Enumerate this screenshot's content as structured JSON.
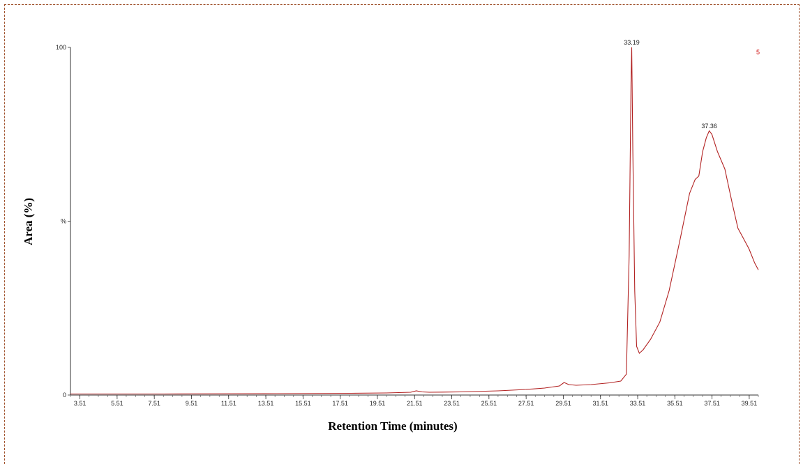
{
  "chart_data": {
    "type": "line",
    "xlabel": "Retention Time (minutes)",
    "ylabel": "Area (%)",
    "xlim": [
      3.0,
      40.0
    ],
    "ylim": [
      0,
      100
    ],
    "x_ticks": [
      "3.51",
      "5.51",
      "7.51",
      "9.51",
      "11.51",
      "13.51",
      "15.51",
      "17.51",
      "19.51",
      "21.51",
      "23.51",
      "25.51",
      "27.51",
      "29.51",
      "31.51",
      "33.51",
      "35.51",
      "37.51",
      "39.51"
    ],
    "y_ticks": [
      {
        "value": 0,
        "label": "0"
      },
      {
        "value": 50,
        "label": "%"
      },
      {
        "value": 100,
        "label": "100"
      }
    ],
    "annotations": [
      {
        "x": 33.19,
        "y": 100,
        "label": "33.19"
      },
      {
        "x": 37.36,
        "y": 76,
        "label": "37.36"
      }
    ],
    "corner_mark": "5",
    "color": "#b22222",
    "series": [
      {
        "x": [
          3.0,
          8.0,
          14.0,
          18.0,
          20.0,
          21.3,
          21.6,
          21.9,
          22.3,
          24.0,
          26.0,
          27.5,
          28.5,
          29.3,
          29.55,
          29.8,
          30.2,
          31.0,
          32.0,
          32.6,
          32.9,
          33.05,
          33.15,
          33.19,
          33.25,
          33.35,
          33.45,
          33.6,
          33.8,
          34.2,
          34.7,
          35.2,
          35.8,
          36.3,
          36.6,
          36.8,
          37.0,
          37.2,
          37.36,
          37.5,
          37.8,
          38.2,
          38.6,
          38.9,
          39.2,
          39.5,
          39.8,
          40.0
        ],
        "y": [
          0.3,
          0.3,
          0.4,
          0.5,
          0.6,
          0.8,
          1.2,
          0.9,
          0.8,
          0.9,
          1.2,
          1.6,
          2.0,
          2.6,
          3.6,
          3.0,
          2.8,
          3.0,
          3.5,
          4.0,
          6.0,
          40.0,
          90.0,
          100.0,
          70.0,
          30.0,
          14.0,
          12.0,
          13.0,
          16.0,
          21.0,
          30.0,
          45.0,
          58.0,
          62.0,
          63.0,
          70.0,
          74.0,
          76.0,
          75.0,
          70.0,
          65.0,
          55.0,
          48.0,
          45.0,
          42.0,
          38.0,
          36.0
        ]
      }
    ]
  }
}
